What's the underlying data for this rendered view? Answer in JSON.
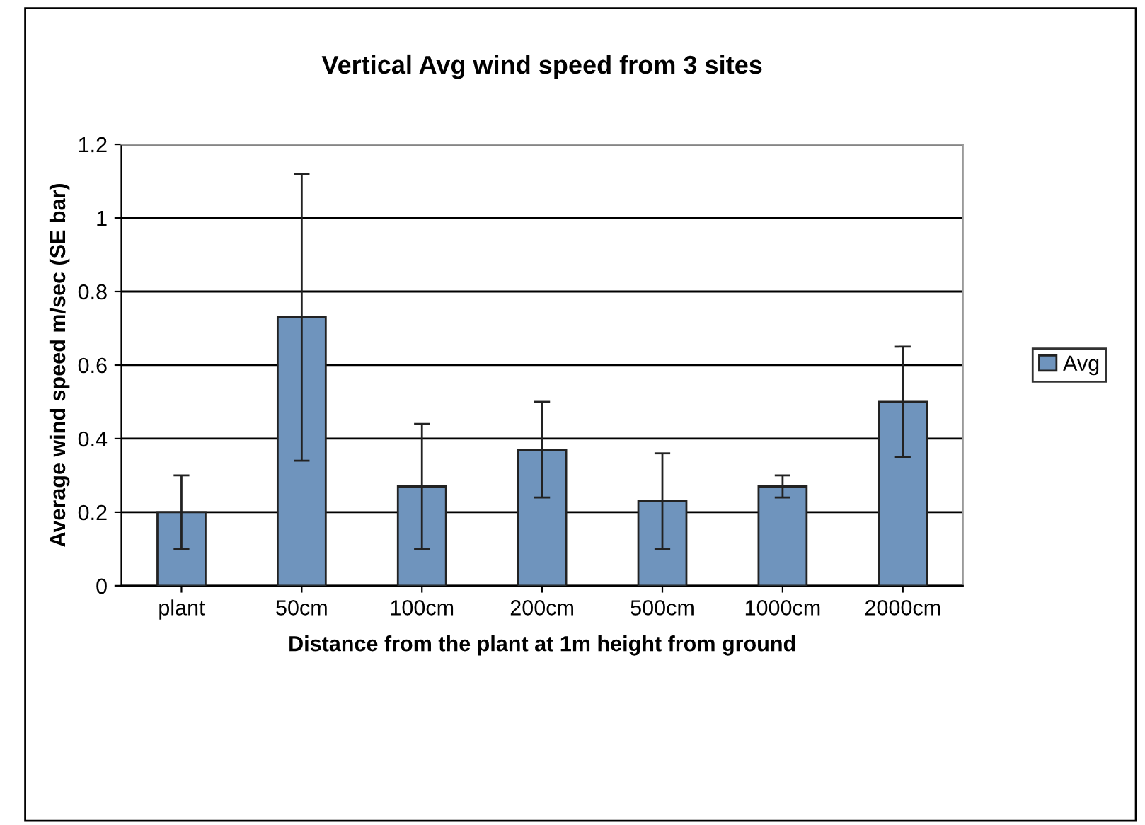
{
  "chart_data": {
    "type": "bar",
    "title": "Vertical Avg wind speed from 3 sites",
    "xlabel": "Distance from the plant at 1m height from ground",
    "ylabel": "Average wind speed m/sec (SE bar)",
    "categories": [
      "plant",
      "50cm",
      "100cm",
      "200cm",
      "500cm",
      "1000cm",
      "2000cm"
    ],
    "series": [
      {
        "name": "Avg",
        "color": "#6f94bd",
        "values": [
          0.2,
          0.73,
          0.27,
          0.37,
          0.23,
          0.27,
          0.5
        ],
        "errors": [
          0.1,
          0.39,
          0.17,
          0.13,
          0.13,
          0.03,
          0.15
        ]
      }
    ],
    "ylim": [
      0,
      1.2
    ],
    "yticks": [
      0,
      0.2,
      0.4,
      0.6,
      0.8,
      1,
      1.2
    ],
    "grid": "y",
    "legend": "right"
  }
}
